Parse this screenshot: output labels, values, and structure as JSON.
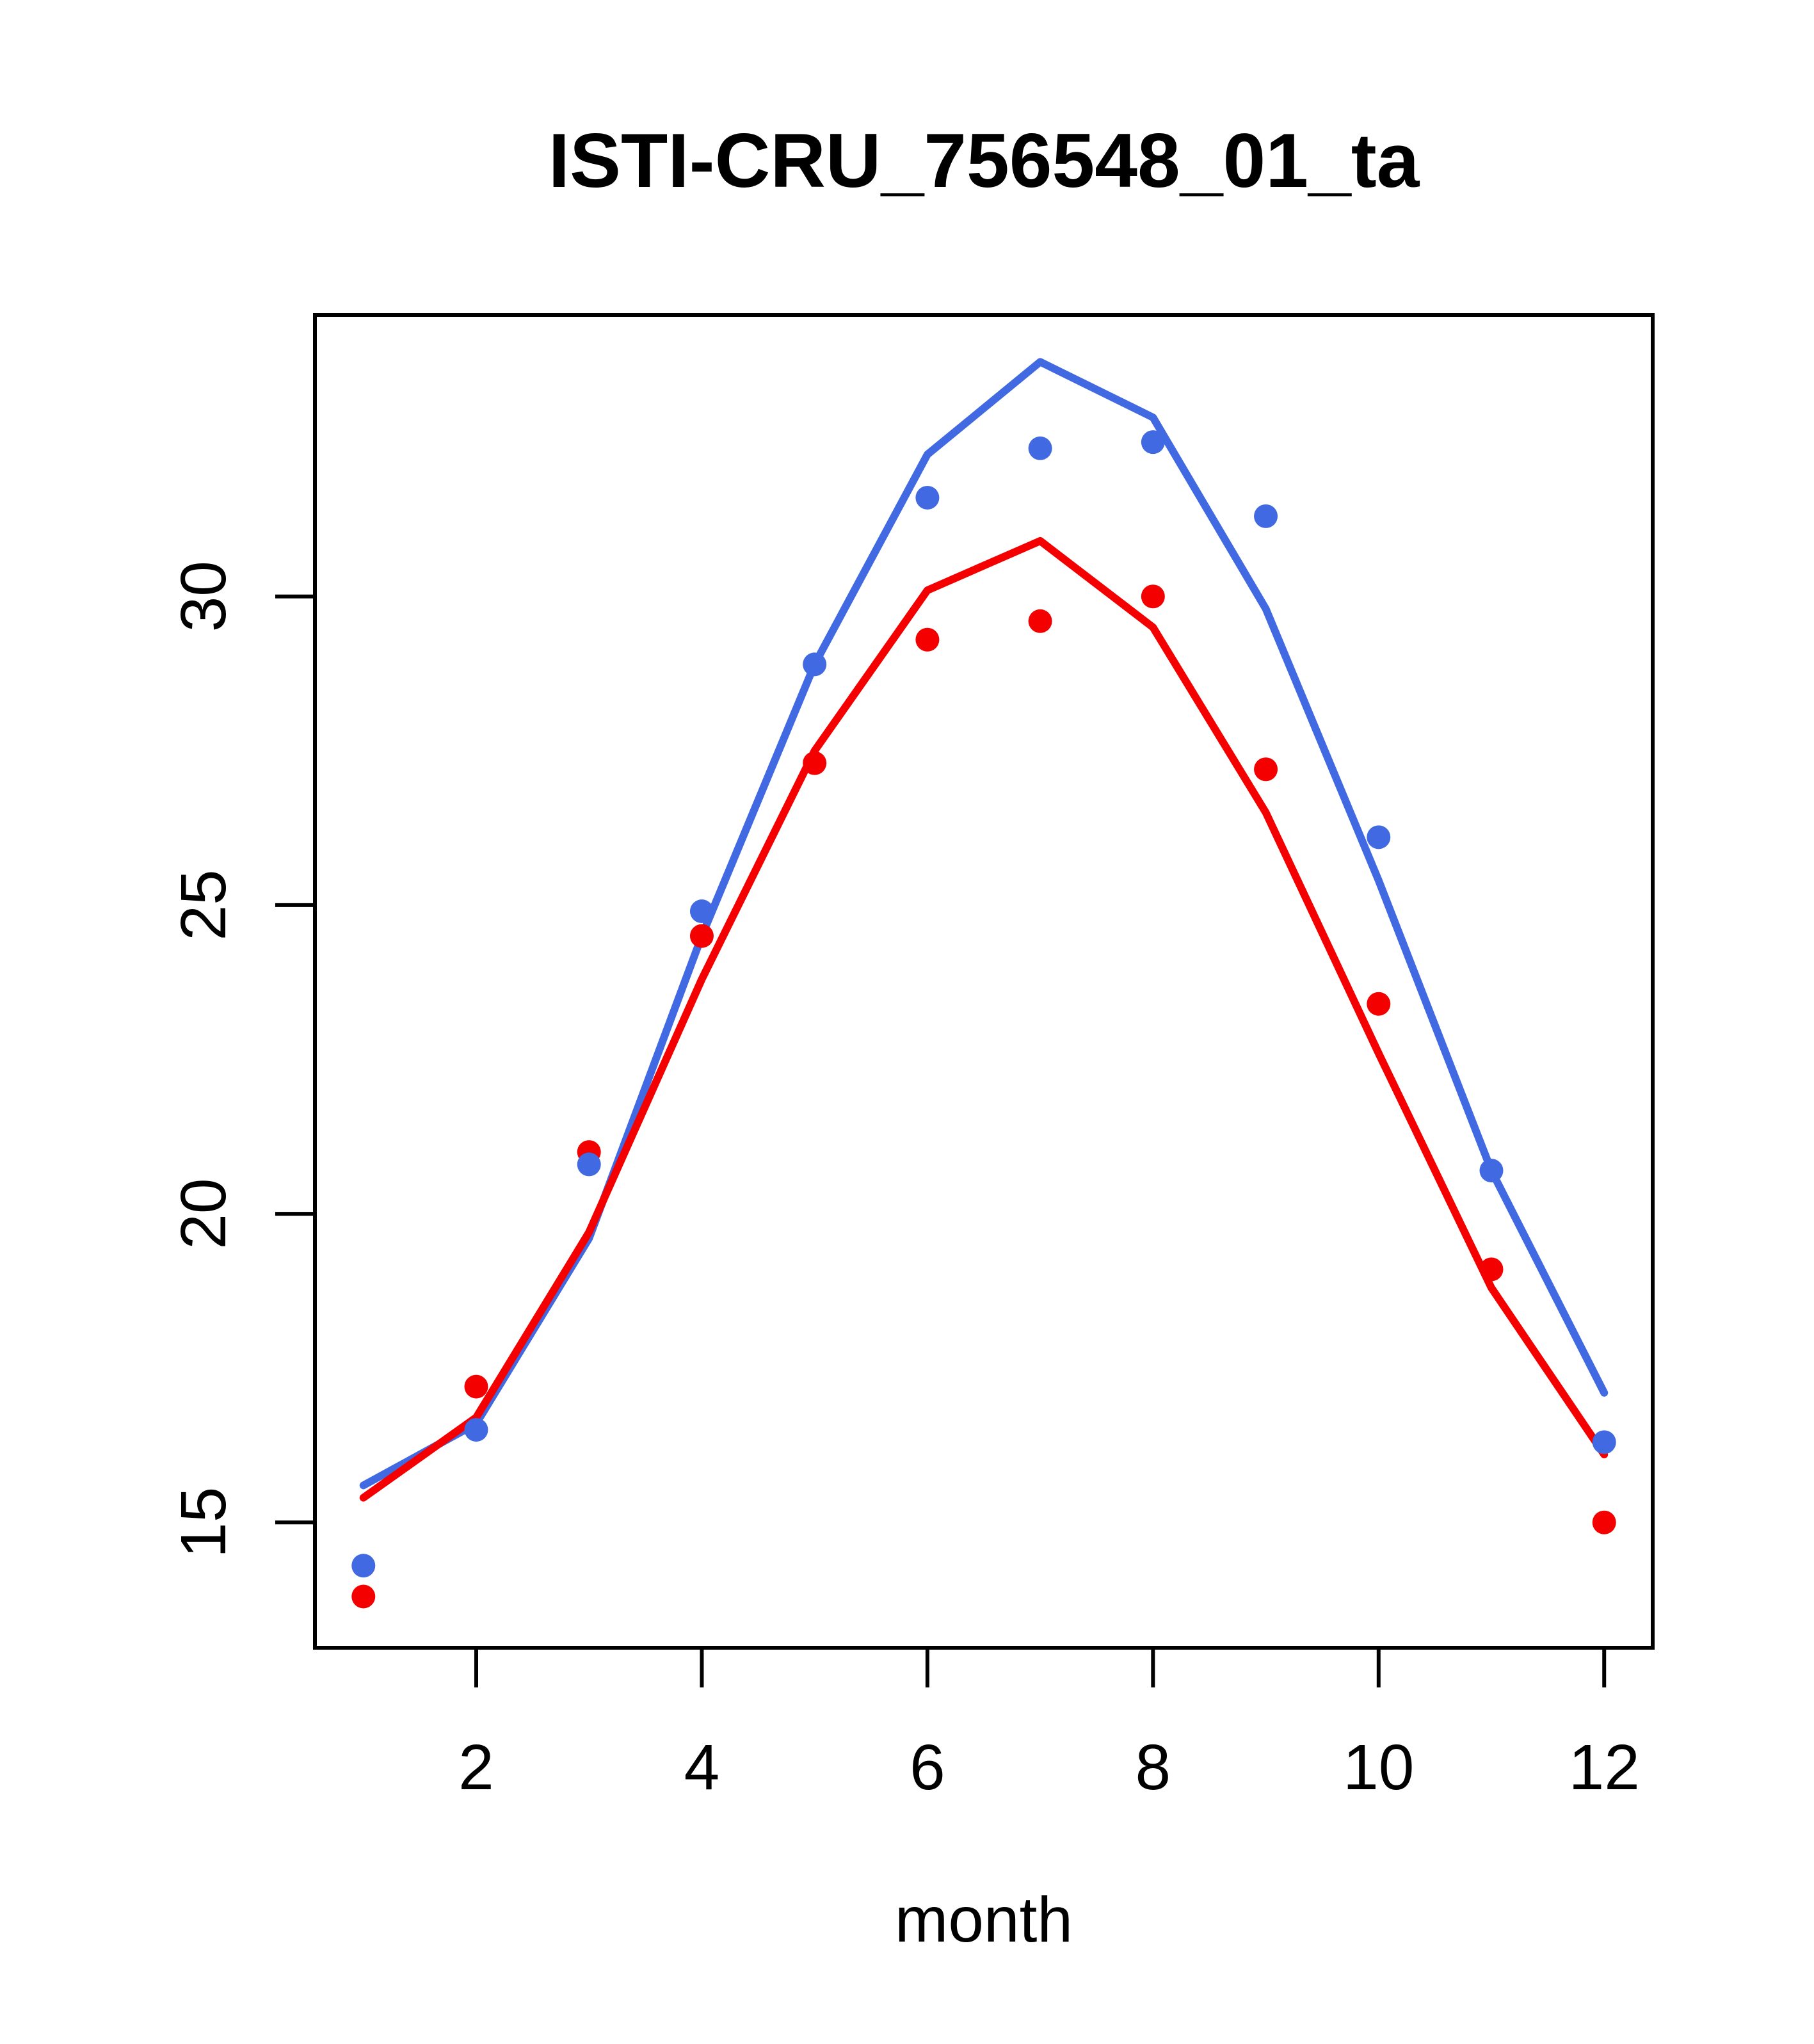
{
  "title": "ISTI-CRU_756548_01_ta",
  "chart_data": {
    "type": "line",
    "title": "ISTI-CRU_756548_01_ta",
    "xlabel": "month",
    "ylabel": "",
    "x": [
      1,
      2,
      3,
      4,
      5,
      6,
      7,
      8,
      9,
      10,
      11,
      12
    ],
    "x_ticks": [
      2,
      4,
      6,
      8,
      10,
      12
    ],
    "y_ticks": [
      15,
      20,
      25,
      30
    ],
    "xlim": [
      0.57,
      12.43
    ],
    "ylim": [
      12.97,
      34.56
    ],
    "grid": false,
    "legend": "none",
    "axis_color": "#000000",
    "background_color": "#ffffff",
    "series": [
      {
        "name": "climatology-line-blue",
        "kind": "line",
        "color": "#4169E1",
        "values": [
          15.6,
          16.6,
          19.6,
          24.5,
          28.9,
          32.3,
          33.8,
          32.9,
          29.8,
          25.4,
          20.7,
          17.1
        ]
      },
      {
        "name": "climatology-line-red",
        "kind": "line",
        "color": "#F40000",
        "values": [
          15.4,
          16.7,
          19.7,
          23.8,
          27.5,
          30.1,
          30.9,
          29.5,
          26.5,
          22.6,
          18.8,
          16.1
        ]
      },
      {
        "name": "monthly-points-red",
        "kind": "scatter",
        "color": "#F40000",
        "values": [
          13.8,
          17.2,
          21.0,
          24.5,
          27.3,
          29.3,
          29.6,
          30.0,
          27.2,
          23.4,
          19.1,
          15.0
        ]
      },
      {
        "name": "monthly-points-blue",
        "kind": "scatter",
        "color": "#4169E1",
        "values": [
          14.3,
          16.5,
          20.8,
          24.9,
          28.9,
          31.6,
          32.4,
          32.5,
          31.3,
          26.1,
          20.7,
          16.3
        ]
      }
    ]
  }
}
